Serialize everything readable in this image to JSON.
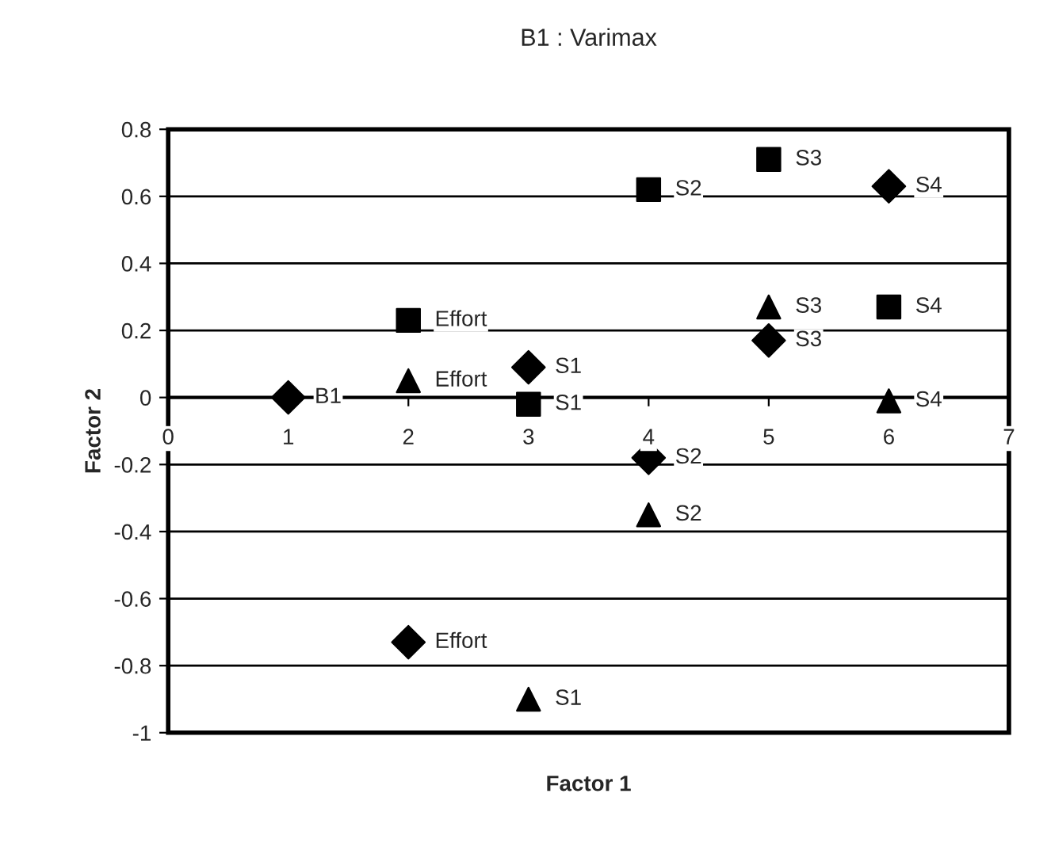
{
  "chart_data": {
    "type": "scatter",
    "title": "B1 : Varimax",
    "xlabel": "Factor 1",
    "ylabel": "Factor 2",
    "xlim": [
      0,
      7
    ],
    "xticks": [
      0,
      1,
      2,
      3,
      4,
      5,
      6,
      7
    ],
    "ylim": [
      -1,
      0.8
    ],
    "yticks": [
      -1,
      -0.8,
      -0.6,
      -0.4,
      -0.2,
      0,
      0.2,
      0.4,
      0.6,
      0.8
    ],
    "grid": "y",
    "legend": false,
    "series": [
      {
        "color": "#000000",
        "marker": "diamond",
        "x": [
          1,
          2,
          3,
          4,
          5,
          6
        ],
        "values": [
          0,
          -0.73,
          0.09,
          -0.18,
          0.17,
          0.63
        ]
      },
      {
        "color": "#000000",
        "marker": "square",
        "x": [
          2,
          3,
          4,
          5,
          6
        ],
        "values": [
          0.23,
          -0.02,
          0.62,
          0.71,
          0.27
        ]
      },
      {
        "color": "#000000",
        "marker": "triangle",
        "x": [
          2,
          3,
          4,
          5,
          6
        ],
        "values": [
          0.05,
          -0.9,
          -0.35,
          0.27,
          -0.01
        ]
      }
    ],
    "annotations": [
      {
        "text": "B1",
        "x": 1,
        "y": 0
      },
      {
        "text": "Effort",
        "x": 2,
        "y": -0.73
      },
      {
        "text": "S1",
        "x": 3,
        "y": 0.09
      },
      {
        "text": "S2",
        "x": 4,
        "y": -0.18
      },
      {
        "text": "S3",
        "x": 5,
        "y": 0.17
      },
      {
        "text": "S4",
        "x": 6,
        "y": 0.63
      },
      {
        "text": "Effort",
        "x": 2,
        "y": 0.23
      },
      {
        "text": "S1",
        "x": 3,
        "y": -0.02
      },
      {
        "text": "S2",
        "x": 4,
        "y": 0.62
      },
      {
        "text": "S3",
        "x": 5,
        "y": 0.71
      },
      {
        "text": "S4",
        "x": 6,
        "y": 0.27
      },
      {
        "text": "Effort",
        "x": 2,
        "y": 0.05
      },
      {
        "text": "S1",
        "x": 3,
        "y": -0.9
      },
      {
        "text": "S2",
        "x": 4,
        "y": -0.35
      },
      {
        "text": "S3",
        "x": 5,
        "y": 0.27
      },
      {
        "text": "S4",
        "x": 6,
        "y": -0.01
      }
    ]
  }
}
